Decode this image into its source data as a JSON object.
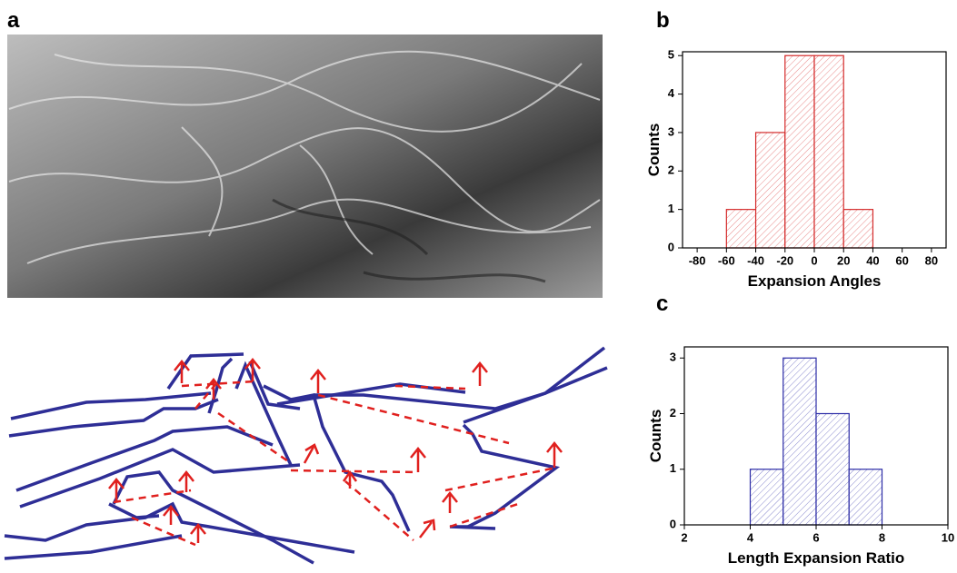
{
  "panel_labels": [
    "a",
    "b",
    "c"
  ],
  "chart_data": [
    {
      "type": "histogram",
      "xlabel": "Expansion Angles",
      "ylabel": "Counts",
      "bins": [
        -60,
        -40,
        -20,
        0,
        20,
        40
      ],
      "counts": [
        1,
        3,
        5,
        5,
        1
      ],
      "color": "#d42a2a",
      "xlim": [
        -90,
        90
      ],
      "xticks": [
        -80,
        -60,
        -40,
        -20,
        0,
        20,
        40,
        60,
        80
      ],
      "ylim": [
        0,
        5.1
      ],
      "yticks": [
        0,
        1,
        2,
        3,
        4,
        5
      ]
    },
    {
      "type": "histogram",
      "xlabel": "Length Expansion Ratio",
      "ylabel": "Counts",
      "bins": [
        4,
        5,
        6,
        7,
        8
      ],
      "counts": [
        1,
        3,
        2,
        1
      ],
      "color": "#2b2ba6",
      "xlim": [
        2,
        10
      ],
      "xticks": [
        2,
        4,
        6,
        8,
        10
      ],
      "ylim": [
        0,
        3.2
      ],
      "yticks": [
        0,
        1,
        2,
        3
      ]
    }
  ]
}
